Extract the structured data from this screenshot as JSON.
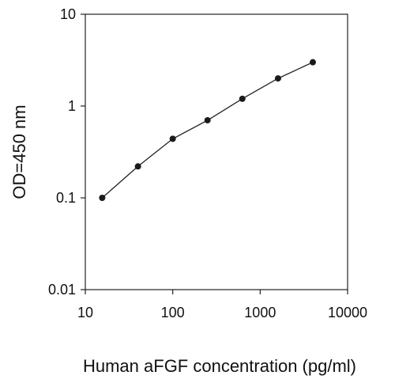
{
  "chart_data": {
    "type": "scatter",
    "title": "",
    "xlabel": "Human aFGF concentration (pg/ml)",
    "ylabel": "OD=450 nm",
    "x_scale": "log",
    "y_scale": "log",
    "xlim": [
      10,
      10000
    ],
    "ylim": [
      0.01,
      10
    ],
    "x_ticks": [
      "10",
      "100",
      "1000",
      "10000"
    ],
    "y_ticks": [
      "0.01",
      "0.1",
      "1",
      "10"
    ],
    "grid": false,
    "legend": "none",
    "line_color": "#222222",
    "marker_color": "#1a1a1a",
    "series": [
      {
        "x": [
          15.6,
          40,
          100,
          250,
          625,
          1600,
          4000
        ],
        "y": [
          0.1,
          0.22,
          0.44,
          0.7,
          1.2,
          2.0,
          3.0
        ]
      }
    ]
  }
}
